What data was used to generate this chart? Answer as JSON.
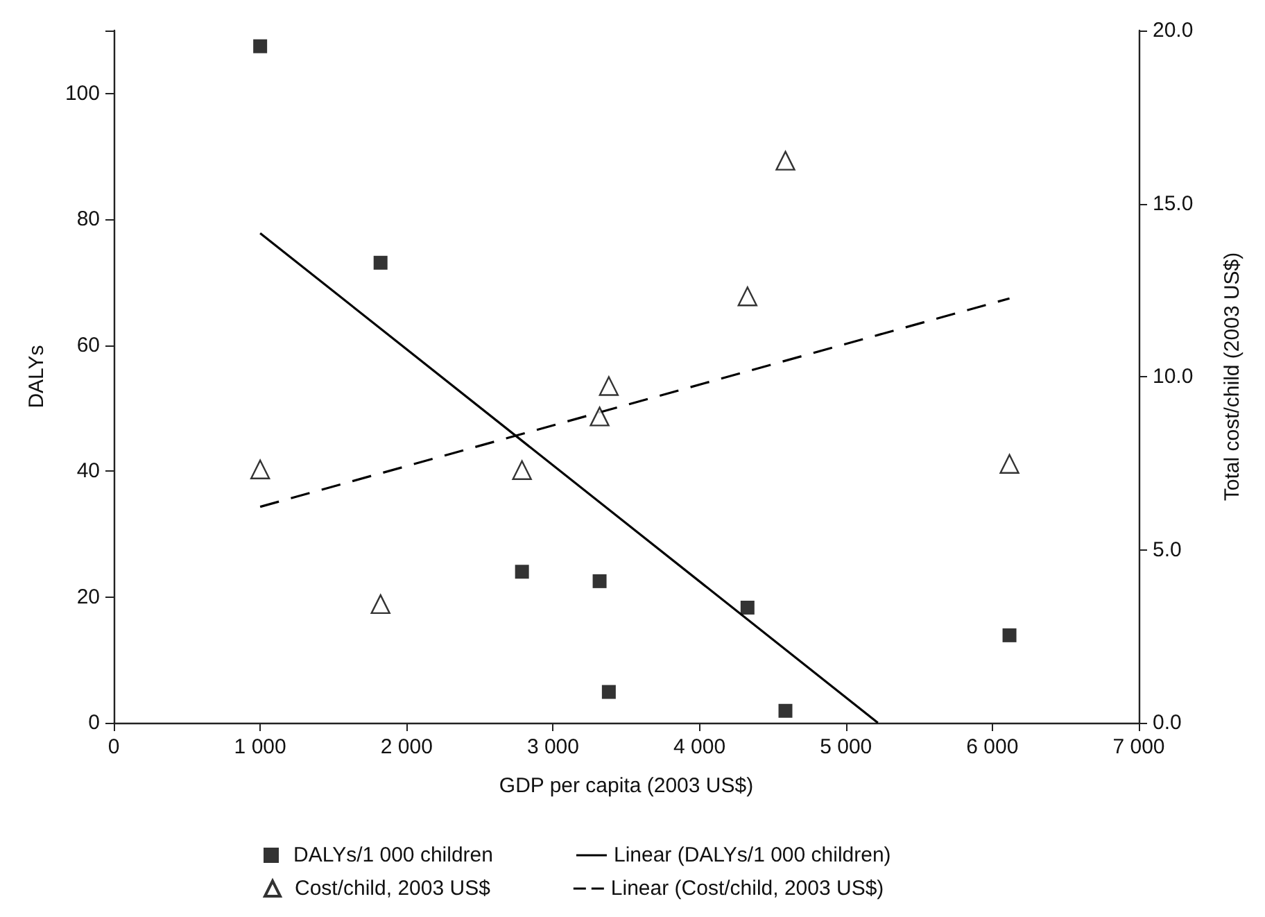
{
  "chart_data": {
    "type": "scatter",
    "xlabel": "GDP per capita (2003 US$)",
    "ylabel": "DALYs",
    "y2label": "Total cost/child (2003 US$)",
    "xlim": [
      0,
      7000
    ],
    "xticks": [
      0,
      {
        "value": 1000,
        "label": "1 000"
      },
      {
        "value": 2000,
        "label": "2 000"
      },
      {
        "value": 3000,
        "label": "3 000"
      },
      {
        "value": 4000,
        "label": "4 000"
      },
      {
        "value": 5000,
        "label": "5 000"
      },
      {
        "value": 6000,
        "label": "6 000"
      },
      {
        "value": 7000,
        "label": "7 000"
      }
    ],
    "ylim": [
      0,
      110
    ],
    "yticks": [
      0,
      20,
      40,
      60,
      80,
      100,
      {
        "value": 110,
        "label": null
      }
    ],
    "y2lim": [
      0,
      20
    ],
    "y2ticks": [
      {
        "value": 0,
        "label": "0.0"
      },
      {
        "value": 5,
        "label": "5.0"
      },
      {
        "value": 10,
        "label": "10.0"
      },
      {
        "value": 15,
        "label": "15.0"
      },
      {
        "value": 20,
        "label": "20.0"
      }
    ],
    "grid": false,
    "legend": "bottom",
    "series": [
      {
        "name": "DALYs/1 000 children",
        "marker": "square",
        "color": "#000000",
        "x": [
          1000,
          1822,
          2788,
          3318,
          3381,
          4328,
          4587,
          6117
        ],
        "values": [
          107.5,
          73.1,
          24.0,
          22.5,
          4.9,
          18.3,
          1.9,
          13.9
        ]
      },
      {
        "name": "Cost/child, 2003 US$",
        "marker": "triangle",
        "axis": "y2",
        "color": "#000000",
        "x": [
          1000,
          1822,
          2788,
          3318,
          3381,
          4328,
          4587,
          6117
        ],
        "values": [
          7.32,
          3.43,
          7.3,
          8.85,
          9.73,
          12.32,
          16.24,
          7.48
        ]
      },
      {
        "name": "Linear (DALYs/1 000 children)",
        "type": "line",
        "marker": "none",
        "line_style": "solid",
        "color": "#000000",
        "x": [
          1000,
          5218
        ],
        "values": [
          77.8,
          0
        ]
      },
      {
        "name": "Linear (Cost/child, 2003 US$)",
        "type": "line",
        "marker": "none",
        "line_style": "dashed",
        "axis": "y2",
        "color": "#000000",
        "x": [
          1000,
          6117
        ],
        "values": [
          6.24,
          12.26
        ]
      }
    ]
  }
}
